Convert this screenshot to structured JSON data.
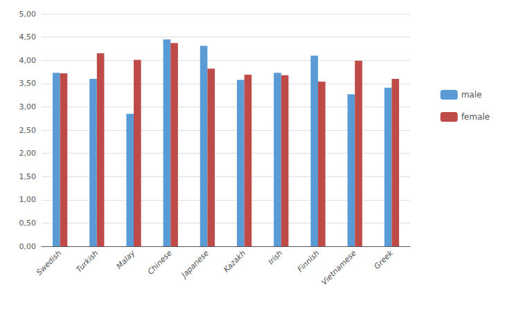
{
  "chart_data": {
    "type": "bar",
    "categories": [
      "Swedish",
      "Turkish",
      "Malay",
      "Chinese",
      "Japanese",
      "Kazakh",
      "Irish",
      "Finnish",
      "Vietnamese",
      "Greek"
    ],
    "series": [
      {
        "name": "male",
        "color": "#5B9BD5",
        "values": [
          3.73,
          3.6,
          2.85,
          4.45,
          4.31,
          3.58,
          3.73,
          4.1,
          3.27,
          3.41
        ]
      },
      {
        "name": "female",
        "color": "#BE4B48",
        "values": [
          3.72,
          4.15,
          4.01,
          4.37,
          3.82,
          3.69,
          3.68,
          3.54,
          3.99,
          3.6
        ]
      }
    ],
    "ylim": [
      0,
      5.0
    ],
    "yticks": [
      {
        "value": 0.0,
        "label": "0,00"
      },
      {
        "value": 0.5,
        "label": "0,50"
      },
      {
        "value": 1.0,
        "label": "1,00"
      },
      {
        "value": 1.5,
        "label": "1,50"
      },
      {
        "value": 2.0,
        "label": "2,00"
      },
      {
        "value": 2.5,
        "label": "2,50"
      },
      {
        "value": 3.0,
        "label": "3,00"
      },
      {
        "value": 3.5,
        "label": "3,50"
      },
      {
        "value": 4.0,
        "label": "4,00"
      },
      {
        "value": 4.5,
        "label": "4,50"
      },
      {
        "value": 5.0,
        "label": "5,00"
      }
    ],
    "grid": true,
    "legend": "right"
  }
}
